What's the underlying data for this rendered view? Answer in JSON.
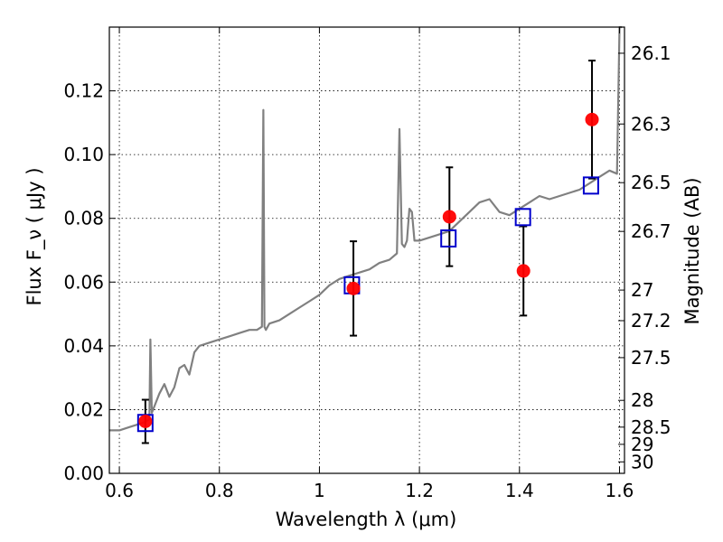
{
  "chart_data": {
    "type": "scatter",
    "xlabel": "Wavelength  λ (μm)",
    "ylabel_left": "Flux  F_ν  ( μJy )",
    "ylabel_right": "Magnitude (AB)",
    "xlim": [
      0.58,
      1.61
    ],
    "ylim": [
      0.0,
      0.14
    ],
    "grid": true,
    "x_ticks": [
      0.6,
      0.8,
      1.0,
      1.2,
      1.4,
      1.6
    ],
    "x_tick_labels": [
      "0.6",
      "0.8",
      "1",
      "1.2",
      "1.4",
      "1.6"
    ],
    "y_ticks": [
      0.0,
      0.02,
      0.04,
      0.06,
      0.08,
      0.1,
      0.12
    ],
    "y_tick_labels": [
      "0.00",
      "0.02",
      "0.04",
      "0.06",
      "0.08",
      "0.10",
      "0.12"
    ],
    "right_ticks": [
      {
        "label": "26.1",
        "flux": 0.1318
      },
      {
        "label": "26.3",
        "flux": 0.1096
      },
      {
        "label": "26.5",
        "flux": 0.0912
      },
      {
        "label": "26.7",
        "flux": 0.0759
      },
      {
        "label": "27",
        "flux": 0.0575
      },
      {
        "label": "27.2",
        "flux": 0.0479
      },
      {
        "label": "27.5",
        "flux": 0.0363
      },
      {
        "label": "28",
        "flux": 0.0229
      },
      {
        "label": "28.5",
        "flux": 0.0145
      },
      {
        "label": "29",
        "flux": 0.0091
      },
      {
        "label": "30",
        "flux": 0.0036
      }
    ],
    "series": [
      {
        "name": "",
        "kind": "line",
        "color": "#808080",
        "x": [
          0.58,
          0.6,
          0.62,
          0.64,
          0.65,
          0.655,
          0.66,
          0.662,
          0.665,
          0.67,
          0.68,
          0.69,
          0.7,
          0.71,
          0.72,
          0.73,
          0.74,
          0.75,
          0.76,
          0.78,
          0.8,
          0.82,
          0.84,
          0.86,
          0.875,
          0.885,
          0.888,
          0.89,
          0.893,
          0.9,
          0.92,
          0.94,
          0.96,
          0.98,
          1.0,
          1.02,
          1.04,
          1.06,
          1.08,
          1.1,
          1.12,
          1.14,
          1.155,
          1.16,
          1.165,
          1.17,
          1.175,
          1.18,
          1.185,
          1.19,
          1.2,
          1.22,
          1.24,
          1.26,
          1.28,
          1.3,
          1.32,
          1.34,
          1.36,
          1.38,
          1.4,
          1.42,
          1.44,
          1.46,
          1.48,
          1.5,
          1.52,
          1.54,
          1.56,
          1.58,
          1.595,
          1.6,
          1.605
        ],
        "y": [
          0.0135,
          0.0135,
          0.0145,
          0.0155,
          0.016,
          0.0165,
          0.017,
          0.042,
          0.019,
          0.021,
          0.025,
          0.028,
          0.024,
          0.027,
          0.033,
          0.034,
          0.031,
          0.038,
          0.04,
          0.041,
          0.042,
          0.043,
          0.044,
          0.045,
          0.045,
          0.046,
          0.114,
          0.046,
          0.045,
          0.047,
          0.048,
          0.05,
          0.052,
          0.054,
          0.056,
          0.059,
          0.061,
          0.062,
          0.063,
          0.064,
          0.066,
          0.067,
          0.069,
          0.108,
          0.072,
          0.071,
          0.073,
          0.083,
          0.082,
          0.073,
          0.073,
          0.074,
          0.075,
          0.076,
          0.079,
          0.082,
          0.085,
          0.086,
          0.082,
          0.081,
          0.083,
          0.085,
          0.087,
          0.086,
          0.087,
          0.088,
          0.089,
          0.091,
          0.093,
          0.095,
          0.094,
          0.14,
          0.14
        ]
      },
      {
        "name": "",
        "kind": "markers-square-open",
        "color": "#0000cc",
        "x": [
          0.652,
          1.065,
          1.258,
          1.407,
          1.543
        ],
        "y": [
          0.0158,
          0.059,
          0.0737,
          0.0804,
          0.0903
        ]
      },
      {
        "name": "",
        "kind": "markers-circle-filled-errorbar",
        "color": "#ff0000",
        "x": [
          0.652,
          1.068,
          1.26,
          1.408,
          1.545
        ],
        "y": [
          0.0163,
          0.058,
          0.0805,
          0.0635,
          0.111
        ],
        "yerr": [
          0.0068,
          0.0148,
          0.0155,
          0.014,
          0.0185
        ]
      }
    ]
  }
}
